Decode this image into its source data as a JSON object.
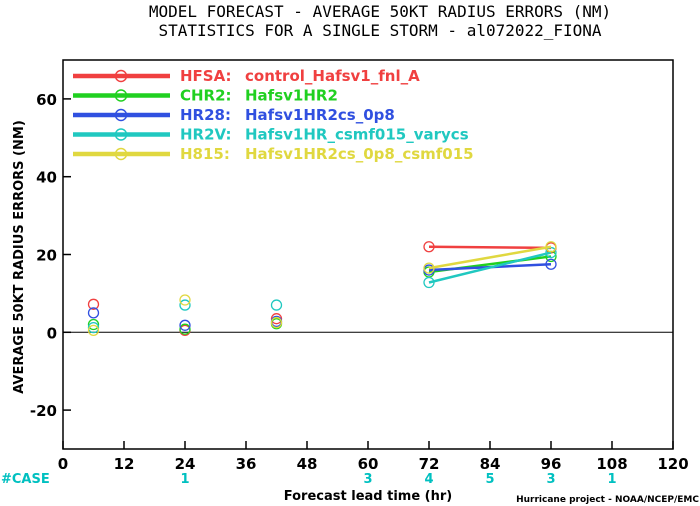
{
  "chart_data": {
    "type": "line",
    "title": "MODEL FORECAST - AVERAGE 50KT RADIUS ERRORS (NM)",
    "subtitle": "STATISTICS FOR A SINGLE STORM - al072022_FIONA",
    "xlabel": "Forecast lead time (hr)",
    "ylabel": "AVERAGE 50KT RADIUS ERRORS (NM)",
    "xlim": [
      0,
      120
    ],
    "ylim": [
      -30,
      70
    ],
    "xticks": [
      0,
      12,
      24,
      36,
      48,
      60,
      72,
      84,
      96,
      108,
      120
    ],
    "yticks": [
      -20,
      0,
      20,
      40,
      60
    ],
    "zero_line": 0,
    "grid": false,
    "legend_position": "top-left",
    "case_row": {
      "label": "#CASE",
      "color": "#00c0c0",
      "entries": [
        {
          "x": 24,
          "value": "1"
        },
        {
          "x": 60,
          "value": "3"
        },
        {
          "x": 72,
          "value": "4"
        },
        {
          "x": 84,
          "value": "5"
        },
        {
          "x": 96,
          "value": "3"
        },
        {
          "x": 108,
          "value": "1"
        }
      ]
    },
    "series": [
      {
        "name": "HFSA:",
        "desc": "control_Hafsv1_fnl_A",
        "color": "#f04040",
        "points": [
          {
            "x": 6,
            "y": 7.2
          },
          {
            "x": 24,
            "y": 0.5
          },
          {
            "x": 42,
            "y": 3.5
          },
          {
            "x": 72,
            "y": 22.0
          },
          {
            "x": 96,
            "y": 21.7
          }
        ],
        "line": [
          [
            72,
            22.0
          ],
          [
            96,
            21.7
          ]
        ]
      },
      {
        "name": "CHR2:",
        "desc": "Hafsv1HR2",
        "color": "#20d020",
        "points": [
          {
            "x": 6,
            "y": 2.0
          },
          {
            "x": 24,
            "y": 0.8
          },
          {
            "x": 42,
            "y": 2.2
          },
          {
            "x": 72,
            "y": 15.5
          },
          {
            "x": 96,
            "y": 19.5
          }
        ],
        "line": [
          [
            72,
            15.5
          ],
          [
            96,
            19.5
          ]
        ]
      },
      {
        "name": "HR28:",
        "desc": "Hafsv1HR2cs_0p8",
        "color": "#3050e0",
        "points": [
          {
            "x": 6,
            "y": 5.0
          },
          {
            "x": 24,
            "y": 1.8
          },
          {
            "x": 42,
            "y": 2.8
          },
          {
            "x": 72,
            "y": 16.0
          },
          {
            "x": 96,
            "y": 17.5
          }
        ],
        "line": [
          [
            72,
            16.0
          ],
          [
            96,
            17.5
          ]
        ]
      },
      {
        "name": "HR2V:",
        "desc": "Hafsv1HR_csmf015_varycs",
        "color": "#20c8c0",
        "points": [
          {
            "x": 6,
            "y": 1.2
          },
          {
            "x": 24,
            "y": 7.0
          },
          {
            "x": 42,
            "y": 7.0
          },
          {
            "x": 72,
            "y": 12.8
          },
          {
            "x": 96,
            "y": 20.5
          }
        ],
        "line": [
          [
            72,
            12.8
          ],
          [
            96,
            20.5
          ]
        ]
      },
      {
        "name": "H815:",
        "desc": "Hafsv1HR2cs_0p8_csmf015",
        "color": "#e0d840",
        "points": [
          {
            "x": 6,
            "y": 0.5
          },
          {
            "x": 24,
            "y": 8.3
          },
          {
            "x": 42,
            "y": 2.5
          },
          {
            "x": 72,
            "y": 16.5
          },
          {
            "x": 96,
            "y": 22.0
          }
        ],
        "line": [
          [
            72,
            16.5
          ],
          [
            96,
            22.0
          ]
        ]
      }
    ],
    "credit": "Hurricane project - NOAA/NCEP/EMC"
  }
}
